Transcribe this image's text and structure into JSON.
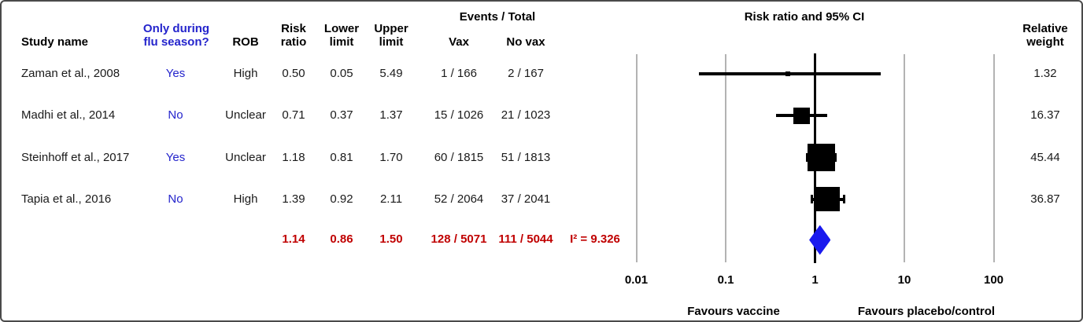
{
  "colors": {
    "blue": "#2424cc",
    "red": "#c00000",
    "diamond": "#1a1aee",
    "grid": "#b3b3b3"
  },
  "table": {
    "headers": {
      "study_name": "Study name",
      "flu_season": "Only during\nflu season?",
      "rob": "ROB",
      "risk_ratio": "Risk\nratio",
      "lower": "Lower\nlimit",
      "upper": "Upper\nlimit",
      "events_total": "Events / Total",
      "vax": "Vax",
      "no_vax": "No vax",
      "relative_weight": "Relative\nweight"
    }
  },
  "chart_data": {
    "type": "forest",
    "title": "Risk ratio and 95% CI",
    "x_scale": "log10",
    "x_ticks": [
      "0.01",
      "0.1",
      "1",
      "10",
      "100"
    ],
    "xlabel_left": "Favours vaccine",
    "xlabel_right": "Favours placebo/control",
    "studies": [
      {
        "name": "Zaman et al., 2008",
        "flu_season": "Yes",
        "rob": "High",
        "risk_ratio": "0.50",
        "lower": "0.05",
        "upper": "5.49",
        "events_vax": "1 / 166",
        "events_novax": "2 / 167",
        "weight": "1.32"
      },
      {
        "name": "Madhi et al., 2014",
        "flu_season": "No",
        "rob": "Unclear",
        "risk_ratio": "0.71",
        "lower": "0.37",
        "upper": "1.37",
        "events_vax": "15 / 1026",
        "events_novax": "21 / 1023",
        "weight": "16.37"
      },
      {
        "name": "Steinhoff et al., 2017",
        "flu_season": "Yes",
        "rob": "Unclear",
        "risk_ratio": "1.18",
        "lower": "0.81",
        "upper": "1.70",
        "events_vax": "60 / 1815",
        "events_novax": "51 / 1813",
        "weight": "45.44"
      },
      {
        "name": "Tapia et al., 2016",
        "flu_season": "No",
        "rob": "High",
        "risk_ratio": "1.39",
        "lower": "0.92",
        "upper": "2.11",
        "events_vax": "52 / 2064",
        "events_novax": "37 / 2041",
        "weight": "36.87"
      }
    ],
    "summary": {
      "risk_ratio": "1.14",
      "lower": "0.86",
      "upper": "1.50",
      "events_vax": "128 / 5071",
      "events_novax": "111 / 5044",
      "i2": "I² = 9.326"
    }
  }
}
